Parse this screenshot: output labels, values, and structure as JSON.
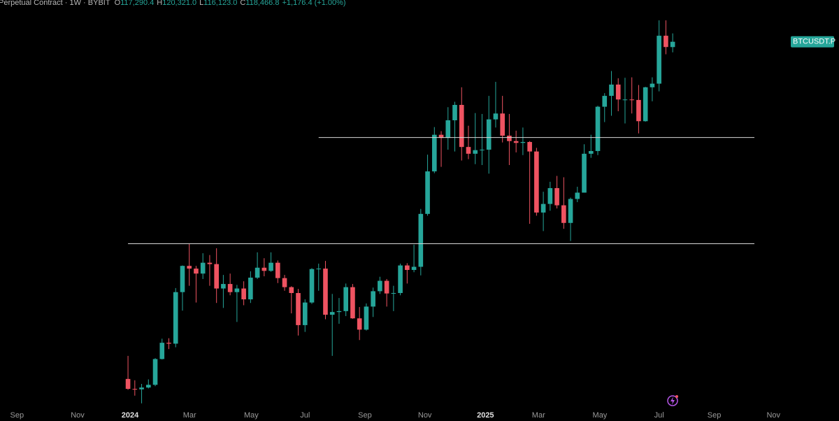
{
  "chart_data": {
    "type": "candlestick",
    "title": "Perpetual Contract · 1W · BYBIT",
    "symbol": "BTCUSDT.P",
    "header": {
      "open_label": "117,290.4",
      "high_label": "120,321.0",
      "low_label": "116,123.0",
      "close_label": "118,466.8",
      "change_label": "+1,176.4 (+1.00%)"
    },
    "header_keys": [
      "O",
      "H",
      "L",
      "C"
    ],
    "open": [
      43900,
      41700,
      41600,
      42000,
      42600,
      48300,
      51900,
      51700,
      63100,
      68900,
      68300,
      67200,
      69600,
      69300,
      63900,
      64900,
      63100,
      63900,
      61500,
      66300,
      68500,
      67800,
      69600,
      66200,
      64200,
      62900,
      55800,
      60800,
      68200,
      68300,
      58100,
      58700,
      58900,
      64200,
      57300,
      54800,
      59900,
      63300,
      65600,
      62800,
      62900,
      69000,
      68000,
      68700,
      80400,
      89800,
      97900,
      97200,
      101100,
      104500,
      95200,
      93700,
      94500,
      94600,
      101300,
      102600,
      97700,
      96500,
      96100,
      96300,
      94200,
      80700,
      82600,
      86100,
      82300,
      78400,
      83700,
      85100,
      93700,
      94300,
      104100,
      106500,
      109000,
      105700,
      105700,
      105600,
      100900,
      108400,
      109200,
      119800,
      117290.4
    ],
    "high": [
      49000,
      43600,
      42800,
      43800,
      48500,
      52800,
      52900,
      64000,
      69000,
      73800,
      68900,
      71700,
      71300,
      72800,
      66900,
      67200,
      64700,
      65500,
      67700,
      71900,
      70600,
      71900,
      70100,
      66900,
      64400,
      63800,
      61500,
      68400,
      69400,
      70000,
      62700,
      61800,
      65000,
      64900,
      59800,
      60600,
      64100,
      66500,
      66000,
      64500,
      69400,
      69500,
      73600,
      81500,
      93500,
      99600,
      98700,
      104000,
      105200,
      108400,
      99900,
      102700,
      102500,
      106500,
      109600,
      106500,
      102500,
      98800,
      99500,
      96500,
      95000,
      85300,
      87500,
      88800,
      88500,
      84000,
      86400,
      95800,
      97900,
      104300,
      107100,
      112000,
      110400,
      110500,
      110600,
      108900,
      108500,
      110600,
      123200,
      123200,
      120321
    ],
    "low": [
      41500,
      40200,
      38500,
      41800,
      42300,
      48200,
      50500,
      50900,
      59000,
      64500,
      60800,
      66000,
      64500,
      60700,
      59600,
      62400,
      56500,
      60200,
      60700,
      66000,
      66600,
      67600,
      65100,
      63400,
      58400,
      53500,
      54300,
      60500,
      63400,
      57100,
      49000,
      56100,
      57800,
      57200,
      52500,
      54600,
      57600,
      62700,
      59900,
      58900,
      62400,
      65000,
      67500,
      66800,
      80000,
      89400,
      90800,
      94600,
      94200,
      92200,
      92500,
      91400,
      91200,
      89300,
      99500,
      96200,
      91200,
      94000,
      93400,
      78200,
      80000,
      76600,
      81100,
      81600,
      77100,
      74400,
      83000,
      85100,
      92800,
      93400,
      100700,
      102100,
      103100,
      100400,
      102600,
      98200,
      100800,
      105300,
      107500,
      115700,
      116123
    ],
    "close": [
      41700,
      41600,
      42000,
      42600,
      48300,
      51900,
      51700,
      63100,
      68900,
      68300,
      67200,
      69600,
      69300,
      63900,
      64900,
      63100,
      63900,
      61500,
      66300,
      68500,
      67800,
      69600,
      66200,
      64200,
      62900,
      55800,
      60800,
      68200,
      68300,
      58100,
      58700,
      58900,
      64200,
      57300,
      54800,
      59900,
      63300,
      65600,
      62800,
      62900,
      69000,
      68000,
      68700,
      80400,
      89800,
      97900,
      97200,
      101100,
      104500,
      95200,
      93700,
      94500,
      94600,
      101300,
      102600,
      97700,
      96500,
      96100,
      96300,
      94200,
      80700,
      82600,
      86100,
      82300,
      78400,
      83700,
      85100,
      93700,
      94300,
      104100,
      106500,
      109000,
      105700,
      105700,
      105600,
      100900,
      108400,
      109200,
      119800,
      117300,
      118466.8
    ],
    "up_color": "#26a69a",
    "down_color": "#ef5361",
    "ylim": [
      38000,
      127700
    ],
    "xlim": [
      -18.8,
      103.4
    ],
    "xticks": [
      {
        "value": -16.3,
        "label": "Sep"
      },
      {
        "value": -7.4,
        "label": "Nov"
      },
      {
        "value": 0.3,
        "label": "2024"
      },
      {
        "value": 9.05,
        "label": "Mar"
      },
      {
        "value": 18.1,
        "label": "May"
      },
      {
        "value": 26.0,
        "label": "Jul"
      },
      {
        "value": 34.8,
        "label": "Sep"
      },
      {
        "value": 43.6,
        "label": "Nov"
      },
      {
        "value": 52.5,
        "label": "2025"
      },
      {
        "value": 60.3,
        "label": "Mar"
      },
      {
        "value": 69.3,
        "label": "May"
      },
      {
        "value": 78.0,
        "label": "Jul"
      },
      {
        "value": 86.1,
        "label": "Sep"
      },
      {
        "value": 94.8,
        "label": "Nov"
      }
    ],
    "hlines": [
      {
        "value": 97300,
        "x": [
          28,
          92
        ]
      },
      {
        "value": 73800,
        "x": [
          0,
          92
        ]
      }
    ]
  }
}
